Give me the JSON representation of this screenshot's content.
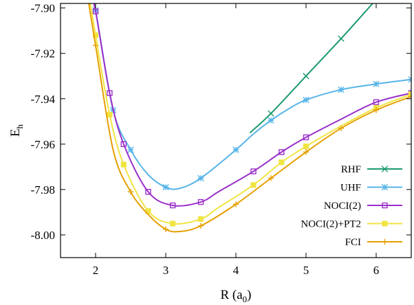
{
  "chart_data": {
    "type": "line",
    "xlabel": "R (a",
    "xlabel_sub": "0",
    "xlabel_suffix": ")",
    "ylabel": "E",
    "ylabel_sub": "h",
    "xlim": [
      1.5,
      6.5
    ],
    "ylim": [
      -8.01,
      -7.898
    ],
    "x_ticks": [
      2,
      3,
      4,
      5,
      6
    ],
    "x_tick_labels": [
      "2",
      "3",
      "4",
      "5",
      "6"
    ],
    "y_ticks": [
      -7.9,
      -7.92,
      -7.94,
      -7.96,
      -7.98,
      -8.0
    ],
    "y_tick_labels": [
      "-7.90",
      "-7.92",
      "-7.94",
      "-7.96",
      "-7.98",
      "-8.00"
    ],
    "grid": false,
    "legend_position": "bottom-right",
    "series": [
      {
        "name": "RHF",
        "color": "#1a9a6c",
        "marker": "x",
        "curve": [
          [
            4.2,
            -7.955
          ],
          [
            4.5,
            -7.9465
          ],
          [
            5.0,
            -7.93
          ],
          [
            5.5,
            -7.9135
          ],
          [
            5.95,
            -7.898
          ]
        ],
        "markers": [
          [
            4.5,
            -7.9465
          ],
          [
            5.0,
            -7.93
          ],
          [
            5.5,
            -7.9135
          ]
        ]
      },
      {
        "name": "UHF",
        "color": "#56b4e9",
        "marker": "star",
        "curve": [
          [
            1.9,
            -7.89
          ],
          [
            2.0,
            -7.901
          ],
          [
            2.25,
            -7.945
          ],
          [
            2.5,
            -7.9625
          ],
          [
            2.75,
            -7.9735
          ],
          [
            3.0,
            -7.979
          ],
          [
            3.2,
            -7.9795
          ],
          [
            3.5,
            -7.975
          ],
          [
            4.0,
            -7.9625
          ],
          [
            4.25,
            -7.9555
          ],
          [
            4.5,
            -7.9495
          ],
          [
            4.75,
            -7.9445
          ],
          [
            5.0,
            -7.9405
          ],
          [
            5.5,
            -7.936
          ],
          [
            6.0,
            -7.9335
          ],
          [
            6.5,
            -7.9315
          ]
        ],
        "markers": [
          [
            2.0,
            -7.901
          ],
          [
            2.25,
            -7.945
          ],
          [
            2.5,
            -7.9625
          ],
          [
            3.0,
            -7.979
          ],
          [
            3.5,
            -7.975
          ],
          [
            4.0,
            -7.9625
          ],
          [
            4.5,
            -7.9495
          ],
          [
            5.0,
            -7.9405
          ],
          [
            5.5,
            -7.936
          ],
          [
            6.0,
            -7.9335
          ],
          [
            6.5,
            -7.9315
          ]
        ]
      },
      {
        "name": "NOCI(2)",
        "color": "#9a2fc9",
        "marker": "open-square",
        "curve": [
          [
            1.9,
            -7.89
          ],
          [
            2.0,
            -7.9015
          ],
          [
            2.2,
            -7.9375
          ],
          [
            2.4,
            -7.96
          ],
          [
            2.75,
            -7.981
          ],
          [
            3.1,
            -7.987
          ],
          [
            3.5,
            -7.9855
          ],
          [
            3.75,
            -7.981
          ],
          [
            4.25,
            -7.972
          ],
          [
            4.65,
            -7.9635
          ],
          [
            5.0,
            -7.957
          ],
          [
            5.5,
            -7.949
          ],
          [
            6.0,
            -7.9415
          ],
          [
            6.5,
            -7.9375
          ]
        ],
        "markers": [
          [
            2.0,
            -7.9015
          ],
          [
            2.2,
            -7.9375
          ],
          [
            2.4,
            -7.96
          ],
          [
            2.75,
            -7.981
          ],
          [
            3.1,
            -7.987
          ],
          [
            3.5,
            -7.9855
          ],
          [
            4.25,
            -7.972
          ],
          [
            4.65,
            -7.9635
          ],
          [
            5.0,
            -7.957
          ],
          [
            6.0,
            -7.9415
          ],
          [
            6.5,
            -7.9375
          ]
        ]
      },
      {
        "name": "NOCI(2)+PT2",
        "color": "#f0e442",
        "marker": "filled-square",
        "curve": [
          [
            1.88,
            -7.89
          ],
          [
            2.0,
            -7.912
          ],
          [
            2.2,
            -7.947
          ],
          [
            2.4,
            -7.969
          ],
          [
            2.75,
            -7.9895
          ],
          [
            3.1,
            -7.995
          ],
          [
            3.5,
            -7.993
          ],
          [
            3.75,
            -7.988
          ],
          [
            4.25,
            -7.978
          ],
          [
            4.65,
            -7.968
          ],
          [
            5.0,
            -7.961
          ],
          [
            5.5,
            -7.952
          ],
          [
            6.0,
            -7.944
          ],
          [
            6.5,
            -7.938
          ]
        ],
        "markers": [
          [
            2.0,
            -7.912
          ],
          [
            2.2,
            -7.947
          ],
          [
            2.4,
            -7.969
          ],
          [
            2.75,
            -7.9895
          ],
          [
            3.1,
            -7.995
          ],
          [
            3.5,
            -7.993
          ],
          [
            4.25,
            -7.978
          ],
          [
            4.65,
            -7.968
          ],
          [
            5.0,
            -7.961
          ],
          [
            6.0,
            -7.944
          ],
          [
            6.5,
            -7.938
          ]
        ]
      },
      {
        "name": "FCI",
        "color": "#e69f00",
        "marker": "plus",
        "curve": [
          [
            1.86,
            -7.89
          ],
          [
            2.0,
            -7.9165
          ],
          [
            2.25,
            -7.9625
          ],
          [
            2.5,
            -7.981
          ],
          [
            2.75,
            -7.991
          ],
          [
            3.0,
            -7.9975
          ],
          [
            3.2,
            -7.9985
          ],
          [
            3.5,
            -7.996
          ],
          [
            4.0,
            -7.9865
          ],
          [
            4.5,
            -7.975
          ],
          [
            5.0,
            -7.9635
          ],
          [
            5.5,
            -7.953
          ],
          [
            6.0,
            -7.945
          ],
          [
            6.5,
            -7.939
          ]
        ],
        "markers": [
          [
            2.0,
            -7.9165
          ],
          [
            2.5,
            -7.981
          ],
          [
            3.0,
            -7.9975
          ],
          [
            3.5,
            -7.996
          ],
          [
            4.0,
            -7.9865
          ],
          [
            4.5,
            -7.975
          ],
          [
            5.0,
            -7.9635
          ],
          [
            5.5,
            -7.953
          ],
          [
            6.0,
            -7.945
          ],
          [
            6.5,
            -7.939
          ]
        ]
      }
    ]
  }
}
